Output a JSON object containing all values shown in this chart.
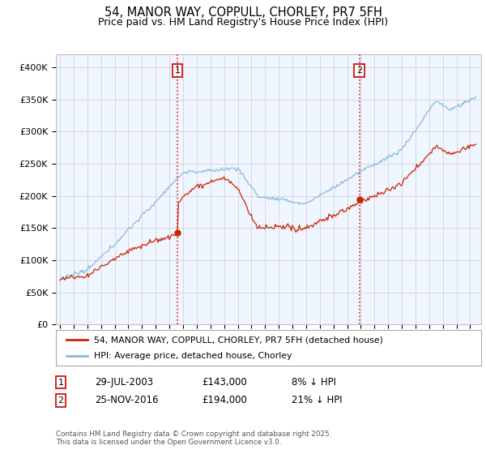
{
  "title": "54, MANOR WAY, COPPULL, CHORLEY, PR7 5FH",
  "subtitle": "Price paid vs. HM Land Registry's House Price Index (HPI)",
  "legend_line1": "54, MANOR WAY, COPPULL, CHORLEY, PR7 5FH (detached house)",
  "legend_line2": "HPI: Average price, detached house, Chorley",
  "sale1_date": "29-JUL-2003",
  "sale1_price": 143000,
  "sale1_label": "1",
  "sale1_note": "8% ↓ HPI",
  "sale1_x": 2003.58,
  "sale1_y": 143000,
  "sale2_date": "25-NOV-2016",
  "sale2_price": 194000,
  "sale2_label": "2",
  "sale2_note": "21% ↓ HPI",
  "sale2_x": 2016.9,
  "sale2_y": 194000,
  "footer": "Contains HM Land Registry data © Crown copyright and database right 2025.\nThis data is licensed under the Open Government Licence v3.0.",
  "red_color": "#cc2200",
  "blue_color": "#88bbdd",
  "background_color": "#ffffff",
  "plot_bg": "#f0f6ff",
  "ylim_min": 0,
  "ylim_max": 420000,
  "yticks": [
    0,
    50000,
    100000,
    150000,
    200000,
    250000,
    300000,
    350000,
    400000
  ],
  "ytick_labels": [
    "£0",
    "£50K",
    "£100K",
    "£150K",
    "£200K",
    "£250K",
    "£300K",
    "£350K",
    "£400K"
  ],
  "xmin": 1994.7,
  "xmax": 2025.8
}
